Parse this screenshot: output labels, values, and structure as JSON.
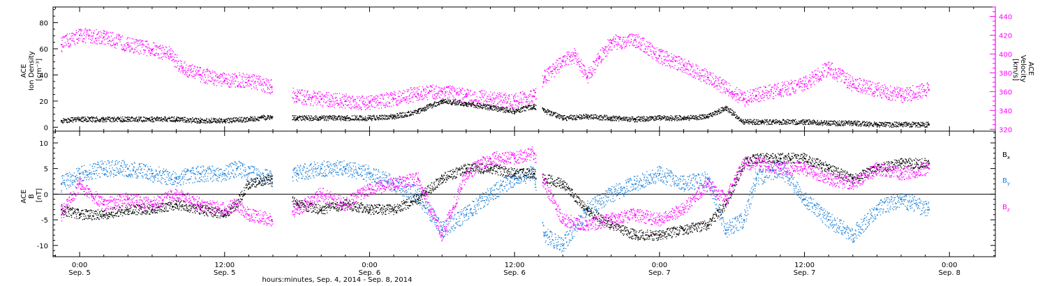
{
  "colors": {
    "black": "#000000",
    "magenta": "#ff00ff",
    "blue": "#1a7fd9",
    "frame": "#000000"
  },
  "xaxis": {
    "title": "hours:minutes, Sep.  4, 2014 - Sep.  8, 2014",
    "ticks": [
      {
        "t": 0,
        "time": "0:00",
        "day": "Sep. 5"
      },
      {
        "t": 12,
        "time": "12:00",
        "day": "Sep. 5"
      },
      {
        "t": 24,
        "time": "0:00",
        "day": "Sep. 6"
      },
      {
        "t": 36,
        "time": "12:00",
        "day": "Sep. 6"
      },
      {
        "t": 48,
        "time": "0:00",
        "day": "Sep. 7"
      },
      {
        "t": 60,
        "time": "12:00",
        "day": "Sep. 7"
      },
      {
        "t": 72,
        "time": "0:00",
        "day": "Sep. 8"
      }
    ],
    "range": [
      -2.2,
      75.8
    ]
  },
  "panel1": {
    "ylabel_left": [
      "ACE",
      "Ion Density",
      "[cm⁻³]"
    ],
    "ylabel_right": [
      "ACE",
      "Velocity",
      "[km/s]"
    ],
    "ylim_left": [
      -3,
      92
    ],
    "ylim_right": [
      318,
      450
    ],
    "left_ticks": [
      0,
      20,
      40,
      60,
      80
    ],
    "right_ticks": [
      320,
      340,
      360,
      380,
      400,
      420,
      440
    ]
  },
  "panel2": {
    "ylabel": [
      "ACE",
      "B",
      "[nT]"
    ],
    "ylim": [
      -12.2,
      12.3
    ],
    "ticks": [
      -10,
      -5,
      0,
      5,
      10
    ],
    "legend": [
      {
        "name": "B",
        "sub": "x",
        "color": "#000000"
      },
      {
        "name": "B",
        "sub": "y",
        "color": "#1a7fd9"
      },
      {
        "name": "B",
        "sub": "z",
        "color": "#ff00ff"
      }
    ]
  },
  "chart_data": [
    {
      "type": "scatter",
      "title": "",
      "xlabel": "hours:minutes, Sep.  4, 2014 - Sep.  8, 2014",
      "x_units": "hours since Sep. 5 0:00",
      "series": [
        {
          "name": "Ion Density",
          "axis": "left",
          "color": "#000000",
          "x": [
            -1.5,
            0,
            2,
            4,
            6,
            8,
            10,
            12,
            14,
            15.9,
            18,
            20,
            22,
            24,
            26,
            28,
            30,
            32,
            34,
            36,
            37.6,
            40,
            42,
            44,
            46,
            48,
            50,
            52,
            53.5,
            55,
            56.5,
            58,
            60,
            62,
            64,
            66,
            68,
            70.3
          ],
          "y": [
            5,
            6,
            6,
            6,
            6,
            6,
            5,
            5,
            6,
            8,
            7,
            7,
            7,
            7,
            8,
            12,
            20,
            18,
            15,
            12,
            16,
            7,
            8,
            7,
            6,
            7,
            7,
            8,
            15,
            4,
            4,
            4,
            4,
            3,
            3,
            2,
            2,
            2
          ]
        },
        {
          "name": "Velocity",
          "axis": "right",
          "color": "#ff00ff",
          "x": [
            -1.5,
            0,
            2,
            4,
            6,
            7.5,
            8.5,
            10,
            12,
            14,
            15.9,
            18,
            20,
            22,
            24,
            26,
            28,
            30,
            32,
            34,
            36,
            37.6,
            38.5,
            40,
            41,
            42,
            43,
            44,
            46,
            48,
            50,
            52,
            54,
            55,
            56,
            58,
            60,
            62,
            64,
            66,
            68,
            70.3
          ],
          "y": [
            410,
            420,
            418,
            410,
            405,
            400,
            385,
            378,
            372,
            372,
            365,
            355,
            352,
            350,
            348,
            352,
            358,
            360,
            355,
            352,
            350,
            355,
            375,
            392,
            398,
            375,
            395,
            412,
            415,
            398,
            388,
            375,
            360,
            352,
            356,
            362,
            368,
            385,
            368,
            362,
            356,
            362
          ]
        }
      ]
    },
    {
      "type": "scatter",
      "title": "",
      "xlabel": "hours:minutes, Sep.  4, 2014 - Sep.  8, 2014",
      "x_units": "hours since Sep. 5 0:00",
      "ylim": [
        -12.2,
        12.3
      ],
      "series": [
        {
          "name": "Bx",
          "color": "#000000",
          "x": [
            -1.5,
            0,
            2,
            4,
            6,
            8,
            10,
            12,
            13,
            14,
            15.9,
            18,
            20,
            22,
            24,
            26,
            28,
            30,
            32,
            34,
            36,
            37.6,
            38.5,
            40,
            42,
            44,
            46,
            48,
            50,
            52,
            53.5,
            55,
            56,
            58,
            60,
            62,
            64,
            66,
            68,
            70.3
          ],
          "y": [
            -3,
            -4,
            -4,
            -3,
            -3,
            -2,
            -3,
            -4,
            -2,
            2,
            3,
            -2,
            -3,
            -2,
            -3,
            -3,
            -1,
            3,
            5,
            5,
            4,
            4,
            3,
            2,
            -3,
            -6,
            -8,
            -8,
            -7,
            -6,
            -2,
            6,
            7,
            7,
            7,
            5,
            3,
            5,
            6,
            6
          ]
        },
        {
          "name": "By",
          "color": "#1a7fd9",
          "x": [
            -1.5,
            0,
            2,
            4,
            6,
            8,
            10,
            12,
            13,
            14,
            15.9,
            18,
            20,
            22,
            24,
            26,
            28,
            30,
            32,
            34,
            36,
            37.6,
            38.5,
            40,
            42,
            44,
            46,
            48,
            50,
            52,
            53.5,
            55,
            56,
            58,
            60,
            62,
            64,
            66,
            68,
            70.3
          ],
          "y": [
            2,
            4,
            5,
            5,
            4,
            3,
            4,
            4,
            5,
            4,
            3,
            4,
            5,
            5,
            4,
            2,
            0,
            -7,
            -4,
            0,
            3,
            4,
            -8,
            -10,
            -3,
            0,
            2,
            4,
            2,
            3,
            -7,
            -5,
            3,
            5,
            -1,
            -5,
            -8,
            -3,
            -1,
            -3
          ]
        },
        {
          "name": "Bz",
          "color": "#ff00ff",
          "x": [
            -1.5,
            0,
            2,
            4,
            6,
            8,
            10,
            12,
            13,
            14,
            15.9,
            18,
            20,
            22,
            24,
            26,
            28,
            30,
            32,
            34,
            36,
            37.6,
            38.5,
            40,
            42,
            44,
            46,
            48,
            50,
            52,
            53.5,
            55,
            56,
            58,
            60,
            62,
            64,
            66,
            68,
            70.3
          ],
          "y": [
            -4,
            2,
            -2,
            -1,
            -2,
            0,
            -2,
            -3,
            -2,
            -4,
            -5,
            -3,
            0,
            -2,
            1,
            2,
            3,
            -8,
            4,
            7,
            7,
            8,
            2,
            -5,
            -6,
            -5,
            -4,
            -5,
            -3,
            2,
            -1,
            6,
            6,
            5,
            5,
            3,
            2,
            5,
            4,
            5
          ]
        }
      ]
    }
  ]
}
